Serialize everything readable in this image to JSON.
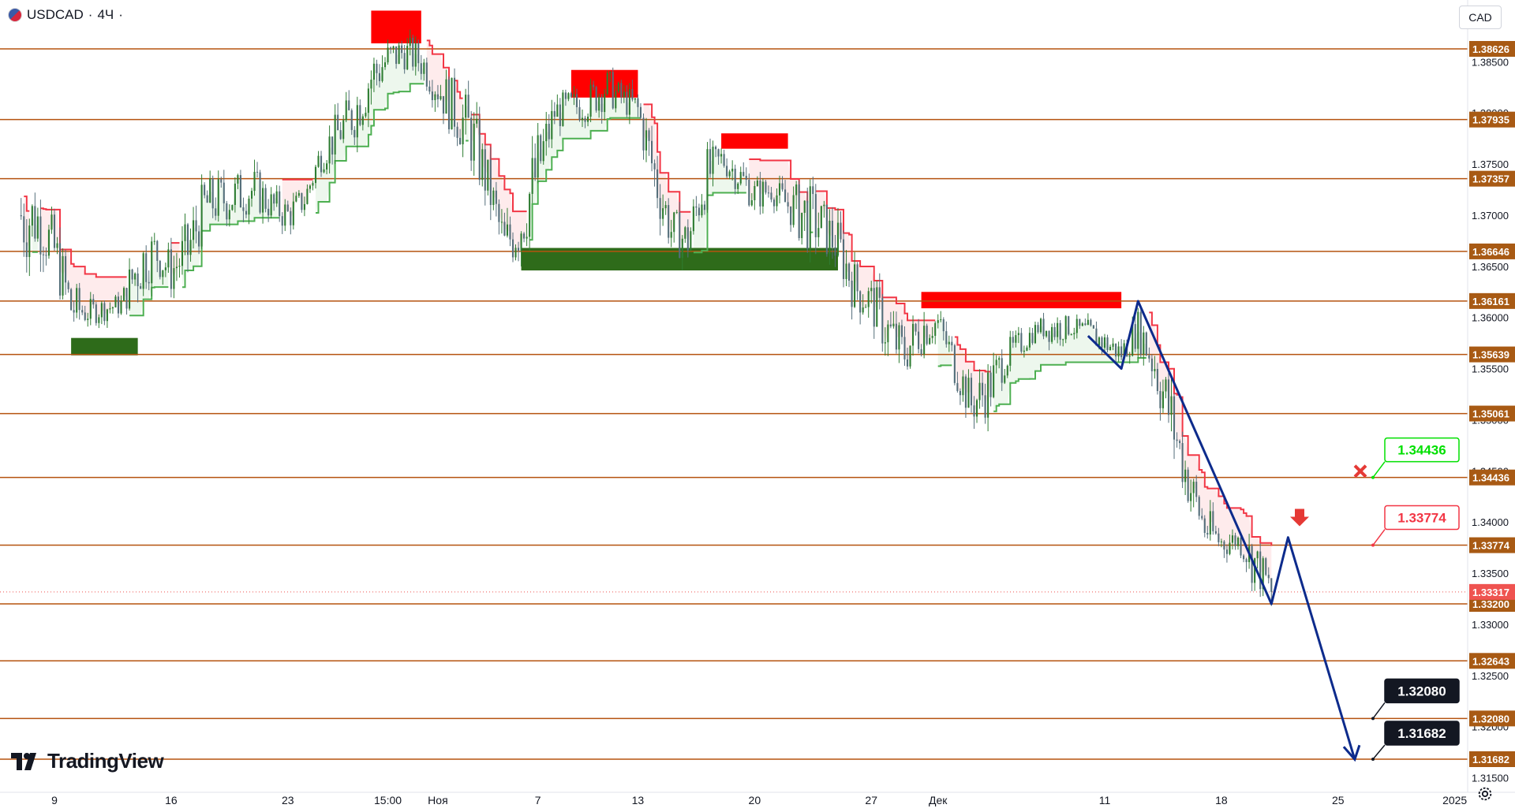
{
  "header": {
    "symbol": "USDCAD",
    "separator1": "·",
    "interval": "4Ч",
    "separator2": "·"
  },
  "currency_button": "CAD",
  "logo_text": "TradingView",
  "colors": {
    "level_line": "#b5530f",
    "level_tag_bg": "#a85a14",
    "current_price_bg": "#ef5350",
    "bull_candle": "#2e7d32",
    "bear_candle": "#546e7a",
    "up_trail": "#4caf50",
    "down_trail": "#f23645",
    "supply_zone": "#ff0000",
    "demand_zone": "#2e6b1a",
    "projection": "#0d2b8c",
    "green_tag": "#00e000",
    "red_tag": "#f23645"
  },
  "chart_data": {
    "type": "candlestick",
    "symbol": "USDCAD",
    "interval": "4Ч",
    "ylim": [
      1.3125,
      1.3895
    ],
    "price_axis_ticks": [
      1.385,
      1.38,
      1.375,
      1.37,
      1.365,
      1.36,
      1.355,
      1.35,
      1.345,
      1.34,
      1.335,
      1.33,
      1.325,
      1.32,
      1.315
    ],
    "price_axis_tick_labels": [
      "1.38500",
      "1.38000",
      "1.37500",
      "1.37000",
      "1.36500",
      "1.36000",
      "1.35500",
      "1.35000",
      "1.34500",
      "1.34000",
      "1.33500",
      "1.33000",
      "1.32500",
      "1.32000",
      "1.31500"
    ],
    "time_axis_labels": [
      "9",
      "16",
      "23",
      "15:00",
      "Ноя",
      "7",
      "13",
      "20",
      "27",
      "Дек",
      "11",
      "18",
      "25",
      "2025"
    ],
    "horizontal_levels": [
      {
        "value": 1.38626,
        "label": "1.38626"
      },
      {
        "value": 1.37935,
        "label": "1.37935"
      },
      {
        "value": 1.37357,
        "label": "1.37357"
      },
      {
        "value": 1.36646,
        "label": "1.36646"
      },
      {
        "value": 1.36161,
        "label": "1.36161"
      },
      {
        "value": 1.35639,
        "label": "1.35639"
      },
      {
        "value": 1.35061,
        "label": "1.35061"
      },
      {
        "value": 1.34436,
        "label": "1.34436"
      },
      {
        "value": 1.33774,
        "label": "1.33774"
      },
      {
        "value": 1.332,
        "label": "1.33200"
      },
      {
        "value": 1.32643,
        "label": "1.32643"
      },
      {
        "value": 1.3208,
        "label": "1.32080"
      },
      {
        "value": 1.31682,
        "label": "1.31682"
      }
    ],
    "current_price": {
      "value": 1.33317,
      "label": "1.33317"
    },
    "supply_zones": [
      {
        "from": "Oct 28",
        "to": "Oct 31",
        "top": 1.39,
        "bottom": 1.3868
      },
      {
        "from": "Nov 9",
        "to": "Nov 13",
        "top": 1.3842,
        "bottom": 1.3815
      },
      {
        "from": "Nov 18",
        "to": "Nov 22",
        "top": 1.378,
        "bottom": 1.3765
      },
      {
        "from": "Nov 30",
        "to": "Dec 12",
        "top": 1.3625,
        "bottom": 1.3609
      }
    ],
    "demand_zones": [
      {
        "from": "Oct 10",
        "to": "Oct 14",
        "top": 1.358,
        "bottom": 1.3563
      },
      {
        "from": "Nov 6",
        "to": "Nov 25",
        "top": 1.3668,
        "bottom": 1.3646
      }
    ],
    "annotations": [
      {
        "kind": "price_tag",
        "text": "1.34436",
        "color": "green",
        "value": 1.34436,
        "marker": "x"
      },
      {
        "kind": "price_tag",
        "text": "1.33774",
        "color": "red",
        "value": 1.33774,
        "marker": "arrow-down"
      },
      {
        "kind": "price_tag",
        "text": "1.32080",
        "color": "black",
        "value": 1.3208
      },
      {
        "kind": "price_tag",
        "text": "1.31682",
        "color": "black",
        "value": 1.31682
      }
    ],
    "projection_path": [
      {
        "x": "Dec 10",
        "y": 1.3582
      },
      {
        "x": "Dec 12",
        "y": 1.355
      },
      {
        "x": "Dec 13",
        "y": 1.3616
      },
      {
        "x": "Dec 21",
        "y": 1.332
      },
      {
        "x": "Dec 22",
        "y": 1.3385
      },
      {
        "x": "Dec 26",
        "y": 1.3168
      }
    ],
    "price_path": [
      [
        "Oct 7",
        1.364,
        1.376
      ],
      [
        "Oct 8",
        1.366,
        1.373
      ],
      [
        "Oct 9",
        1.363,
        1.37
      ],
      [
        "Oct 10",
        1.358,
        1.364
      ],
      [
        "Oct 11",
        1.359,
        1.362
      ],
      [
        "Oct 13",
        1.36,
        1.3625
      ],
      [
        "Oct 14",
        1.361,
        1.369
      ],
      [
        "Oct 15",
        1.364,
        1.369
      ],
      [
        "Oct 16",
        1.362,
        1.367
      ],
      [
        "Oct 17",
        1.363,
        1.37
      ],
      [
        "Oct 18",
        1.368,
        1.374
      ],
      [
        "Oct 21",
        1.37,
        1.375
      ],
      [
        "Oct 22",
        1.369,
        1.373
      ],
      [
        "Oct 23",
        1.368,
        1.372
      ],
      [
        "Oct 24",
        1.37,
        1.373
      ],
      [
        "Oct 25",
        1.374,
        1.378
      ],
      [
        "Oct 27",
        1.377,
        1.383
      ],
      [
        "Oct 28",
        1.38,
        1.387
      ],
      [
        "Oct 29",
        1.383,
        1.3875
      ],
      [
        "Oct 30",
        1.384,
        1.388
      ],
      [
        "Oct 31",
        1.383,
        1.387
      ],
      [
        "Nov 1",
        1.38,
        1.385
      ],
      [
        "Nov 3",
        1.374,
        1.382
      ],
      [
        "Nov 4",
        1.37,
        1.376
      ],
      [
        "Nov 5",
        1.364,
        1.37
      ],
      [
        "Nov 6",
        1.365,
        1.374
      ],
      [
        "Nov 7",
        1.37,
        1.379
      ],
      [
        "Nov 8",
        1.378,
        1.382
      ],
      [
        "Nov 10",
        1.379,
        1.383
      ],
      [
        "Nov 11",
        1.38,
        1.385
      ],
      [
        "Nov 12",
        1.38,
        1.383
      ],
      [
        "Nov 13",
        1.378,
        1.3825
      ],
      [
        "Nov 14",
        1.37,
        1.378
      ],
      [
        "Nov 15",
        1.366,
        1.371
      ],
      [
        "Nov 16",
        1.365,
        1.37
      ],
      [
        "Nov 17",
        1.37,
        1.377
      ],
      [
        "Nov 18",
        1.374,
        1.377
      ],
      [
        "Nov 19",
        1.372,
        1.376
      ],
      [
        "Nov 20",
        1.37,
        1.374
      ],
      [
        "Nov 21",
        1.371,
        1.374
      ],
      [
        "Nov 22",
        1.369,
        1.373
      ],
      [
        "Nov 23",
        1.366,
        1.374
      ],
      [
        "Nov 24",
        1.366,
        1.372
      ],
      [
        "Nov 25",
        1.364,
        1.37
      ],
      [
        "Nov 26",
        1.36,
        1.366
      ],
      [
        "Nov 27",
        1.359,
        1.364
      ],
      [
        "Nov 28",
        1.355,
        1.362
      ],
      [
        "Nov 29",
        1.354,
        1.359
      ],
      [
        "Nov 30",
        1.356,
        1.362
      ],
      [
        "Dec 1",
        1.358,
        1.361
      ],
      [
        "Dec 2",
        1.353,
        1.358
      ],
      [
        "Dec 3",
        1.349,
        1.354
      ],
      [
        "Dec 4",
        1.35,
        1.356
      ],
      [
        "Dec 5",
        1.354,
        1.358
      ],
      [
        "Dec 6",
        1.356,
        1.359
      ],
      [
        "Dec 7",
        1.358,
        1.36
      ],
      [
        "Dec 8",
        1.357,
        1.361
      ],
      [
        "Dec 9",
        1.358,
        1.36
      ],
      [
        "Dec 10",
        1.357,
        1.36
      ],
      [
        "Dec 11",
        1.356,
        1.359
      ],
      [
        "Dec 12",
        1.355,
        1.358
      ],
      [
        "Dec 13",
        1.357,
        1.361
      ],
      [
        "Dec 14",
        1.352,
        1.359
      ],
      [
        "Dec 15",
        1.346,
        1.354
      ],
      [
        "Dec 16",
        1.341,
        1.347
      ],
      [
        "Dec 17",
        1.337,
        1.342
      ],
      [
        "Dec 18",
        1.336,
        1.34
      ],
      [
        "Dec 19",
        1.337,
        1.3395
      ],
      [
        "Dec 20",
        1.333,
        1.339
      ],
      [
        "Dec 21",
        1.332,
        1.335
      ]
    ]
  }
}
